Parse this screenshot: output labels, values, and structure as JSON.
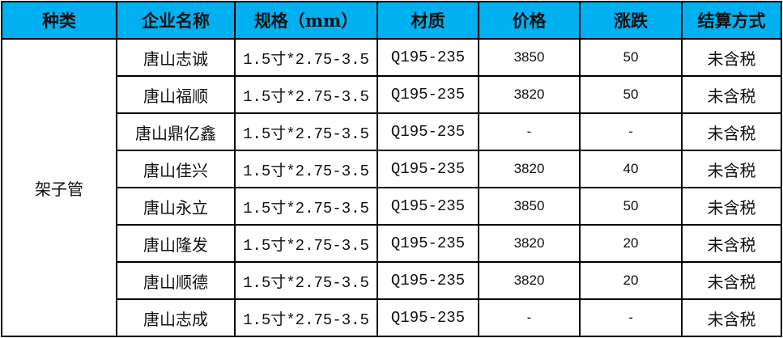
{
  "headers": [
    "种类",
    "企业名称",
    "规格（mm）",
    "材质",
    "价格",
    "涨跌",
    "结算方式"
  ],
  "category": "架子管",
  "header_color": "#00b0f0",
  "rows": [
    {
      "company": "唐山志诚",
      "spec": "1.5寸*2.75-3.5",
      "material": "Q195-235",
      "price": "3850",
      "change": "50",
      "settlement": "未含税"
    },
    {
      "company": "唐山福顺",
      "spec": "1.5寸*2.75-3.5",
      "material": "Q195-235",
      "price": "3820",
      "change": "50",
      "settlement": "未含税"
    },
    {
      "company": "唐山鼎亿鑫",
      "spec": "1.5寸*2.75-3.5",
      "material": "Q195-235",
      "price": "-",
      "change": "-",
      "settlement": "未含税"
    },
    {
      "company": "唐山佳兴",
      "spec": "1.5寸*2.75-3.5",
      "material": "Q195-235",
      "price": "3820",
      "change": "40",
      "settlement": "未含税"
    },
    {
      "company": "唐山永立",
      "spec": "1.5寸*2.75-3.5",
      "material": "Q195-235",
      "price": "3850",
      "change": "50",
      "settlement": "未含税"
    },
    {
      "company": "唐山隆发",
      "spec": "1.5寸*2.75-3.5",
      "material": "Q195-235",
      "price": "3820",
      "change": "20",
      "settlement": "未含税"
    },
    {
      "company": "唐山顺德",
      "spec": "1.5寸*2.75-3.5",
      "material": "Q195-235",
      "price": "3820",
      "change": "20",
      "settlement": "未含税"
    },
    {
      "company": "唐山志成",
      "spec": "1.5寸*2.75-3.5",
      "material": "Q195-235",
      "price": "-",
      "change": "-",
      "settlement": "未含税"
    }
  ]
}
